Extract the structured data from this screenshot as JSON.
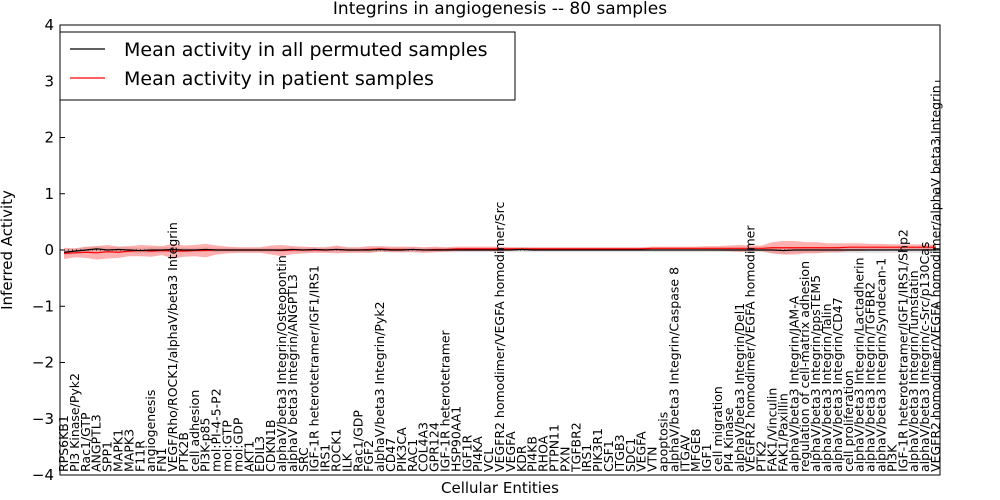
{
  "chart_data": {
    "type": "line",
    "title": "Integrins in angiogenesis -- 80 samples",
    "xlabel": "Cellular Entities",
    "ylabel": "Inferred Activity",
    "ylim": [
      -4,
      4
    ],
    "yticks": [
      -4,
      -3,
      -2,
      -1,
      0,
      1,
      2,
      3,
      4
    ],
    "ytick_labels": [
      "−4",
      "−3",
      "−2",
      "−1",
      "0",
      "1",
      "2",
      "3",
      "4"
    ],
    "legend": {
      "placement": "top-left"
    },
    "categories": [
      "RPS6KB1",
      "PI3 Kinase/Pyk2",
      "Rac1/GTP",
      "ANGPTL3",
      "SPP1",
      "MAPK1",
      "MAPK3",
      "F11R",
      "angiogenesis",
      "FN1",
      "VEGF/Rho/ROCK1/alphaV/beta3 Integrin",
      "PTK2B",
      "cell adhesion",
      "PI3K-p85",
      "mol:PI-4-5-P2",
      "mol:GTP",
      "mol:GDP",
      "AKT1",
      "EDIL3",
      "CDKN1B",
      "alphaV/beta3 Integrin/Osteopontin",
      "alphaV beta3 Integrin/ANGPTL3",
      "SRC",
      "IGF-1R heterotetramer/IGF1/IRS1",
      "IRS1",
      "ROCK1",
      "ILK",
      "Rac1/GDP",
      "FGF2",
      "alphaV/beta3 Integrin/Pyk2",
      "CD47",
      "PIK3CA",
      "RAC1",
      "COL4A3",
      "GPR124",
      "IGF-1R heterotetramer",
      "HSP90AA1",
      "IGF1R",
      "PI4KA",
      "VCL",
      "VEGFR2 homodimer/VEGFA homodimer/Src",
      "VEGFA",
      "KDR",
      "PI4KB",
      "RHOA",
      "PTPN11",
      "PXN",
      "TGFBR2",
      "IRS1",
      "PIK3R1",
      "CSF1",
      "ITGB3",
      "SDC1",
      "VEGFA",
      "VTN",
      "apoptosis",
      "alphaV/beta3 Integrin/Caspase 8",
      "ITGAV",
      "MFGE8",
      "IGF1",
      "cell migration",
      "PI4 Kinase",
      "alphaV/beta3 Integrin/Del1",
      "VEGFR2 homodimer/VEGFA homodimer",
      "PTK2",
      "FAK1/Vinculin",
      "FAK1/Paxillin",
      "alphaV/beta3 Integrin/JAM-A",
      "regulation of cell-matrix adhesion",
      "alphaV/beta3 Integrin/ppsTEM5",
      "alphaV/beta3 Integrin/Talin",
      "alphaV/beta3 Integrin/CD47",
      "cell proliferation",
      "alphaV/beta3 Integrin/Lactadherin",
      "alphaV/beta3 Integrin/TGFBR2",
      "alphaV/beta3 Integrin/Syndecan-1",
      "PI3K",
      "IGF-1R heterotetramer/IGF1/IRS1/Shp2",
      "alphaV/beta3 Integrin/Tumstatin",
      "alphaV/beta3 Integrin/c-Src/p130Cas",
      "VEGFR2 homodimer/VEGFA homodimer/alphaV beta3 Integrin"
    ],
    "series": [
      {
        "name": "Mean activity in all permuted samples",
        "color": "#000000",
        "values": [
          -0.04,
          -0.02,
          0.0,
          0.02,
          0.0,
          0.01,
          0.0,
          -0.01,
          0.0,
          0.0,
          0.01,
          0.0,
          0.0,
          0.01,
          0.0,
          0.0,
          0.0,
          0.0,
          0.0,
          0.0,
          0.0,
          0.01,
          0.0,
          0.01,
          0.0,
          0.01,
          0.0,
          0.0,
          0.0,
          0.01,
          0.0,
          0.0,
          0.01,
          0.0,
          0.0,
          0.0,
          0.0,
          0.0,
          0.0,
          0.0,
          0.0,
          0.0,
          0.01,
          0.0,
          0.0,
          0.0,
          0.0,
          0.0,
          0.0,
          0.0,
          0.0,
          0.0,
          0.0,
          0.0,
          0.0,
          0.0,
          0.0,
          0.0,
          0.0,
          0.0,
          0.0,
          0.0,
          0.0,
          0.0,
          0.0,
          0.0,
          -0.01,
          0.0,
          0.0,
          0.0,
          0.0,
          0.0,
          0.0,
          0.0,
          0.0,
          0.0,
          0.0,
          0.0,
          0.0,
          0.0,
          0.0
        ],
        "band": [
          0.05,
          0.05,
          0.05,
          0.05,
          0.05,
          0.05,
          0.05,
          0.05,
          0.05,
          0.05,
          0.04,
          0.04,
          0.04,
          0.04,
          0.04,
          0.04,
          0.04,
          0.04,
          0.04,
          0.04,
          0.04,
          0.04,
          0.04,
          0.04,
          0.04,
          0.04,
          0.04,
          0.04,
          0.04,
          0.04,
          0.04,
          0.04,
          0.04,
          0.04,
          0.04,
          0.04,
          0.04,
          0.04,
          0.04,
          0.04,
          0.04,
          0.04,
          0.04,
          0.04,
          0.04,
          0.04,
          0.04,
          0.04,
          0.04,
          0.04,
          0.04,
          0.04,
          0.04,
          0.04,
          0.04,
          0.04,
          0.04,
          0.04,
          0.04,
          0.04,
          0.04,
          0.04,
          0.04,
          0.04,
          0.04,
          0.06,
          0.06,
          0.05,
          0.05,
          0.05,
          0.05,
          0.05,
          0.05,
          0.05,
          0.05,
          0.05,
          0.05,
          0.05,
          0.05,
          0.05,
          0.05
        ]
      },
      {
        "name": "Mean activity in patient samples",
        "color": "#ff0000",
        "values": [
          -0.06,
          -0.05,
          -0.04,
          -0.05,
          -0.03,
          -0.04,
          -0.02,
          -0.01,
          -0.02,
          -0.01,
          -0.02,
          -0.02,
          -0.01,
          -0.01,
          0.0,
          0.0,
          0.0,
          0.0,
          0.0,
          0.0,
          -0.01,
          0.0,
          0.0,
          0.0,
          0.0,
          0.01,
          0.0,
          0.0,
          0.01,
          0.02,
          0.01,
          0.01,
          0.01,
          0.0,
          0.01,
          0.01,
          0.02,
          0.02,
          0.02,
          0.02,
          0.02,
          0.02,
          0.02,
          0.02,
          0.02,
          0.02,
          0.02,
          0.02,
          0.02,
          0.02,
          0.02,
          0.02,
          0.02,
          0.02,
          0.03,
          0.03,
          0.03,
          0.03,
          0.03,
          0.03,
          0.03,
          0.03,
          0.03,
          0.03,
          0.03,
          0.04,
          0.04,
          0.04,
          0.04,
          0.04,
          0.04,
          0.04,
          0.05,
          0.05,
          0.05,
          0.05,
          0.05,
          0.05,
          0.05,
          0.05,
          0.05
        ],
        "band": [
          0.1,
          0.08,
          0.1,
          0.12,
          0.12,
          0.1,
          0.09,
          0.1,
          0.1,
          0.08,
          0.13,
          0.1,
          0.1,
          0.12,
          0.08,
          0.06,
          0.05,
          0.05,
          0.05,
          0.08,
          0.1,
          0.07,
          0.06,
          0.05,
          0.05,
          0.07,
          0.05,
          0.05,
          0.06,
          0.05,
          0.05,
          0.05,
          0.05,
          0.05,
          0.05,
          0.04,
          0.04,
          0.04,
          0.04,
          0.04,
          0.04,
          0.03,
          0.03,
          0.03,
          0.03,
          0.03,
          0.03,
          0.03,
          0.03,
          0.03,
          0.03,
          0.03,
          0.03,
          0.03,
          0.03,
          0.03,
          0.03,
          0.03,
          0.03,
          0.04,
          0.04,
          0.05,
          0.06,
          0.05,
          0.05,
          0.1,
          0.12,
          0.12,
          0.1,
          0.1,
          0.08,
          0.08,
          0.07,
          0.07,
          0.06,
          0.06,
          0.05,
          0.05,
          0.05,
          0.05,
          0.05
        ]
      }
    ]
  }
}
